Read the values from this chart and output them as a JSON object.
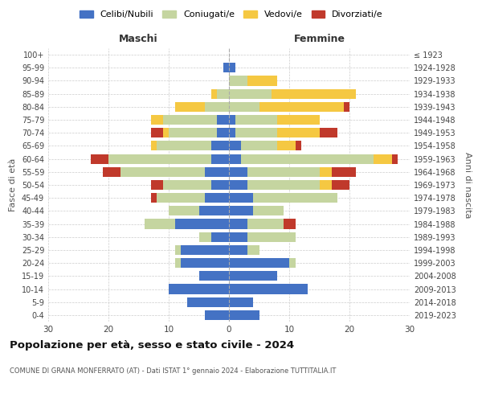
{
  "age_groups": [
    "100+",
    "95-99",
    "90-94",
    "85-89",
    "80-84",
    "75-79",
    "70-74",
    "65-69",
    "60-64",
    "55-59",
    "50-54",
    "45-49",
    "40-44",
    "35-39",
    "30-34",
    "25-29",
    "20-24",
    "15-19",
    "10-14",
    "5-9",
    "0-4"
  ],
  "birth_years": [
    "≤ 1923",
    "1924-1928",
    "1929-1933",
    "1934-1938",
    "1939-1943",
    "1944-1948",
    "1949-1953",
    "1954-1958",
    "1959-1963",
    "1964-1968",
    "1969-1973",
    "1974-1978",
    "1979-1983",
    "1984-1988",
    "1989-1993",
    "1994-1998",
    "1999-2003",
    "2004-2008",
    "2009-2013",
    "2014-2018",
    "2019-2023"
  ],
  "colors": {
    "celibi": "#4472C4",
    "coniugati": "#C5D5A0",
    "vedovi": "#F5C842",
    "divorziati": "#C0392B"
  },
  "males": {
    "celibi": [
      0,
      1,
      0,
      0,
      0,
      2,
      2,
      3,
      3,
      4,
      3,
      4,
      5,
      9,
      3,
      8,
      8,
      5,
      10,
      7,
      4
    ],
    "coniugati": [
      0,
      0,
      0,
      2,
      4,
      9,
      8,
      9,
      17,
      14,
      8,
      8,
      5,
      5,
      2,
      1,
      1,
      0,
      0,
      0,
      0
    ],
    "vedovi": [
      0,
      0,
      0,
      1,
      5,
      2,
      1,
      1,
      0,
      0,
      0,
      0,
      0,
      0,
      0,
      0,
      0,
      0,
      0,
      0,
      0
    ],
    "divorziati": [
      0,
      0,
      0,
      0,
      0,
      0,
      2,
      0,
      3,
      3,
      2,
      1,
      0,
      0,
      0,
      0,
      0,
      0,
      0,
      0,
      0
    ]
  },
  "females": {
    "nubili": [
      0,
      1,
      0,
      0,
      0,
      1,
      1,
      2,
      2,
      3,
      3,
      4,
      4,
      3,
      3,
      3,
      10,
      8,
      13,
      4,
      5
    ],
    "coniugate": [
      0,
      0,
      3,
      7,
      5,
      7,
      7,
      6,
      22,
      12,
      12,
      14,
      5,
      6,
      8,
      2,
      1,
      0,
      0,
      0,
      0
    ],
    "vedove": [
      0,
      0,
      5,
      14,
      14,
      7,
      7,
      3,
      3,
      2,
      2,
      0,
      0,
      0,
      0,
      0,
      0,
      0,
      0,
      0,
      0
    ],
    "divorziate": [
      0,
      0,
      0,
      0,
      1,
      0,
      3,
      1,
      1,
      4,
      3,
      0,
      0,
      2,
      0,
      0,
      0,
      0,
      0,
      0,
      0
    ]
  },
  "xlim": 30,
  "title": "Popolazione per età, sesso e stato civile - 2024",
  "subtitle": "COMUNE DI GRANA MONFERRATO (AT) - Dati ISTAT 1° gennaio 2024 - Elaborazione TUTTITALIA.IT",
  "legend_labels": [
    "Celibi/Nubili",
    "Coniugati/e",
    "Vedovi/e",
    "Divorziati/e"
  ],
  "xlabel_left": "Maschi",
  "xlabel_right": "Femmine",
  "ylabel_left": "Fasce di età",
  "ylabel_right": "Anni di nascita",
  "bg_color": "#FFFFFF"
}
